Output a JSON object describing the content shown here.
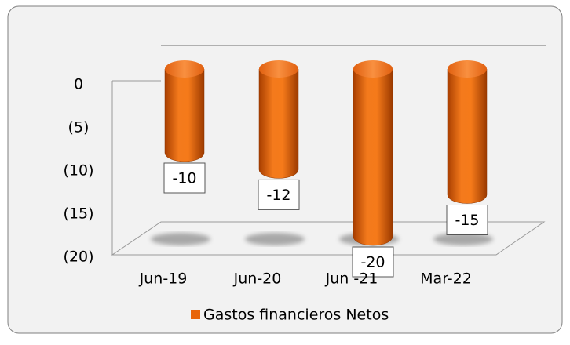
{
  "chart_data": {
    "type": "bar",
    "subtype": "3d-cylinder",
    "categories": [
      "Jun-19",
      "Jun-20",
      "Jun -21",
      "Mar-22"
    ],
    "series": [
      {
        "name": "Gastos financieros Netos",
        "color": "#e8650a",
        "values": [
          -10,
          -12,
          -20,
          -15
        ]
      }
    ],
    "ylim": [
      -20,
      0
    ],
    "yticks": [
      {
        "value": 0,
        "label": "0"
      },
      {
        "value": -5,
        "label": "(5)"
      },
      {
        "value": -10,
        "label": "(10)"
      },
      {
        "value": -15,
        "label": "(15)"
      },
      {
        "value": -20,
        "label": "(20)"
      }
    ],
    "legend": "bottom"
  }
}
